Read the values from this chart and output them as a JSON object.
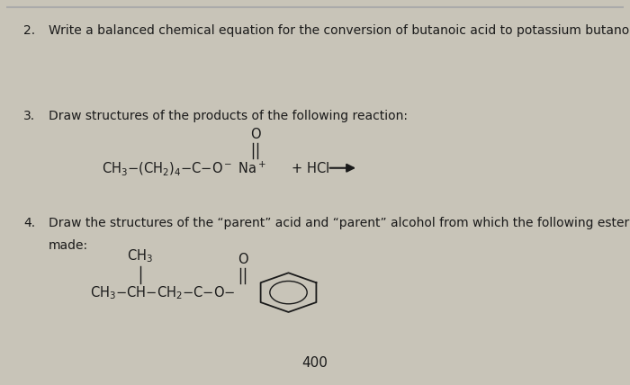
{
  "background_color": "#c8c4b8",
  "page_color": "#e8e5de",
  "font_color": "#1a1a1a",
  "font_size_label": 10.5,
  "font_size_chem": 10.5,
  "page_number": "400",
  "text2": "Write a balanced chemical equation for the conversion of butanoic acid to potassium butanoate.",
  "text3": "Draw structures of the products of the following reaction:",
  "text4a": "Draw the structures of the “parent” acid and “parent” alcohol from which the following ester is",
  "text4b": "made:"
}
